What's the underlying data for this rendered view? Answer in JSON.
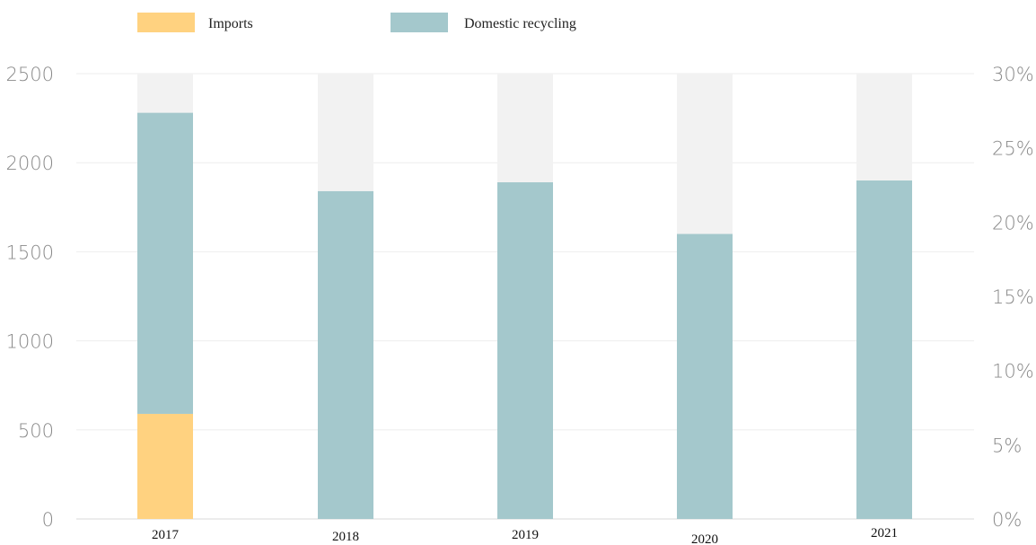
{
  "chart_data": {
    "type": "bar",
    "categories": [
      "2017",
      "2018",
      "2019",
      "2020",
      "2021"
    ],
    "series": [
      {
        "name": "Imports",
        "color": "#ffd280",
        "values": [
          590,
          0,
          0,
          0,
          0
        ]
      },
      {
        "name": "Domestic recycling",
        "color": "#a4c8cc",
        "values": [
          1690,
          1840,
          1890,
          1600,
          1900
        ]
      }
    ],
    "background_bar_color": "#f2f2f2",
    "y_left": {
      "min": 0,
      "max": 2500,
      "ticks": [
        "0",
        "500",
        "1000",
        "1500",
        "2000",
        "2500"
      ]
    },
    "y_right": {
      "min": 0,
      "max": 30,
      "ticks": [
        "0%",
        "5%",
        "10%",
        "15%",
        "20%",
        "25%",
        "30%"
      ]
    },
    "xlabel": "",
    "ylabel": "",
    "grid": true,
    "legend_position": "top-left"
  }
}
